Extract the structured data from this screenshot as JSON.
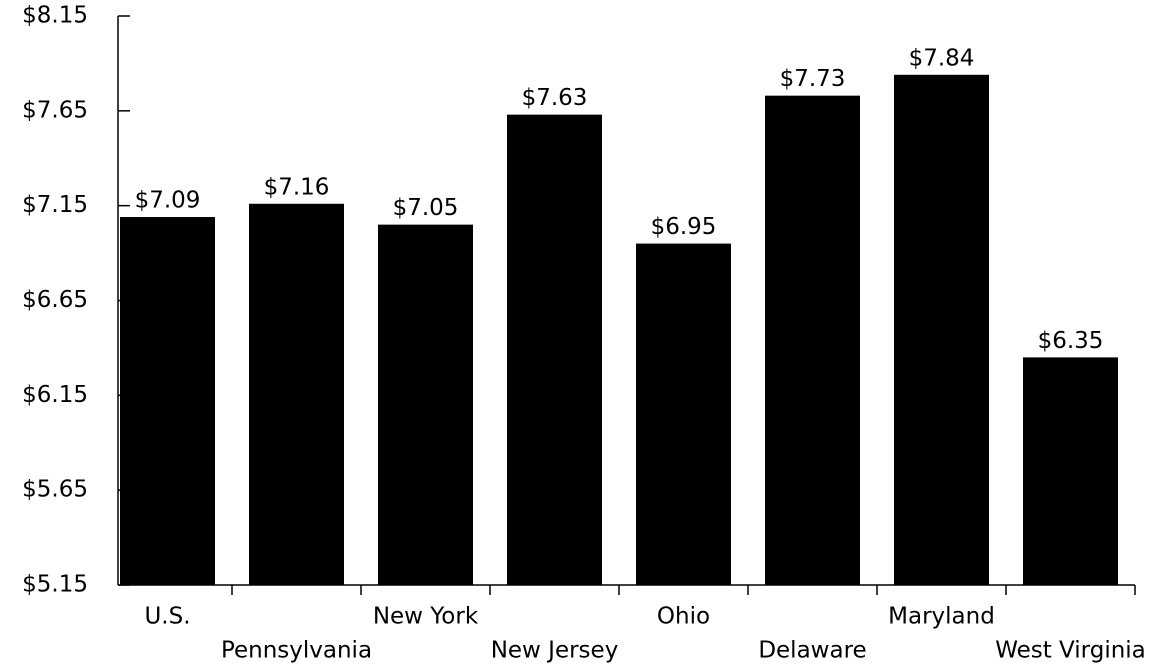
{
  "chart_data": {
    "type": "bar",
    "categories": [
      "U.S.",
      "Pennsylvania",
      "New York",
      "New Jersey",
      "Ohio",
      "Delaware",
      "Maryland",
      "West Virginia"
    ],
    "values": [
      7.09,
      7.16,
      7.05,
      7.63,
      6.95,
      7.73,
      7.84,
      6.35
    ],
    "value_labels": [
      "$7.09",
      "$7.16",
      "$7.05",
      "$7.63",
      "$6.95",
      "$7.73",
      "$7.84",
      "$6.35"
    ],
    "color": "#000000",
    "ylim": [
      5.15,
      8.15
    ],
    "yticks": [
      {
        "value": 5.15,
        "label": "$5.15"
      },
      {
        "value": 5.65,
        "label": "$5.65"
      },
      {
        "value": 6.15,
        "label": "$6.15"
      },
      {
        "value": 6.65,
        "label": "$6.65"
      },
      {
        "value": 7.15,
        "label": "$7.15"
      },
      {
        "value": 7.65,
        "label": "$7.65"
      },
      {
        "value": 8.15,
        "label": "$8.15"
      }
    ],
    "grid": false
  }
}
